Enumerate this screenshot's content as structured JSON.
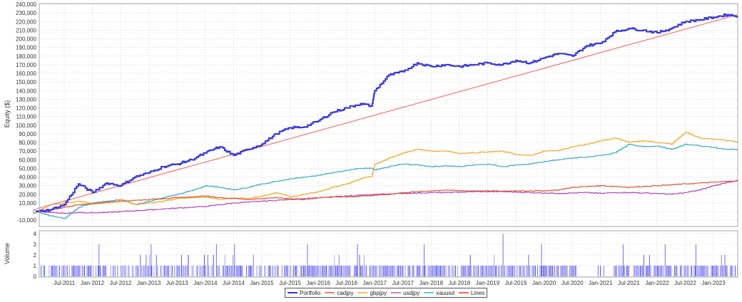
{
  "chart_data": [
    {
      "type": "line",
      "title": "",
      "xlabel": "",
      "ylabel": "Equity ($)",
      "ylim": [
        -15000,
        240000
      ],
      "y_ticks": [
        -10000,
        0,
        10000,
        20000,
        30000,
        40000,
        50000,
        60000,
        70000,
        80000,
        90000,
        100000,
        110000,
        120000,
        130000,
        140000,
        150000,
        160000,
        170000,
        180000,
        190000,
        200000,
        210000,
        220000,
        230000,
        240000
      ],
      "x_ticks": [
        "Jul-2011",
        "Jan-2012",
        "Jul-2012",
        "Jan-2013",
        "Jul-2013",
        "Jan-2014",
        "Jul-2014",
        "Jan-2015",
        "Jul-2015",
        "Jan-2016",
        "Jul-2016",
        "Jan-2017",
        "Jul-2017",
        "Jan-2018",
        "Jul-2018",
        "Jan-2019",
        "Jul-2019",
        "Jan-2020",
        "Jul-2020",
        "Jan-2021",
        "Jul-2021",
        "Jan-2022",
        "Jul-2022",
        "Jan-2023"
      ],
      "grid": true,
      "x": [
        2011.0,
        2011.25,
        2011.5,
        2011.75,
        2012.0,
        2012.25,
        2012.5,
        2012.75,
        2013.0,
        2013.25,
        2013.5,
        2013.75,
        2014.0,
        2014.25,
        2014.5,
        2014.75,
        2015.0,
        2015.25,
        2015.5,
        2015.75,
        2016.0,
        2016.25,
        2016.5,
        2016.75,
        2016.95,
        2017.0,
        2017.25,
        2017.5,
        2017.75,
        2018.0,
        2018.25,
        2018.5,
        2018.75,
        2019.0,
        2019.25,
        2019.5,
        2019.75,
        2020.0,
        2020.25,
        2020.5,
        2020.75,
        2021.0,
        2021.25,
        2021.5,
        2021.75,
        2022.0,
        2022.25,
        2022.5,
        2022.75,
        2023.0,
        2023.25,
        2023.5
      ],
      "series": [
        {
          "name": "Portfolio",
          "color": "#3333dd",
          "values": [
            0,
            2000,
            8000,
            32000,
            22000,
            33000,
            30000,
            40000,
            45000,
            52000,
            55000,
            60000,
            68000,
            75000,
            65000,
            72000,
            78000,
            90000,
            97000,
            98000,
            105000,
            115000,
            120000,
            125000,
            122000,
            140000,
            158000,
            162000,
            172000,
            168000,
            170000,
            168000,
            170000,
            172000,
            170000,
            175000,
            172000,
            178000,
            183000,
            180000,
            192000,
            195000,
            208000,
            212000,
            210000,
            207000,
            212000,
            220000,
            222000,
            225000,
            228000,
            225000
          ]
        },
        {
          "name": "cadjpy",
          "color": "#e05530",
          "values": [
            0,
            2000,
            5000,
            8000,
            9000,
            11000,
            12000,
            13000,
            14000,
            15000,
            16000,
            17000,
            18000,
            16000,
            15000,
            14000,
            15000,
            16000,
            15000,
            14000,
            16000,
            17000,
            17000,
            18000,
            18500,
            19000,
            20000,
            22000,
            23000,
            24000,
            25000,
            24000,
            24000,
            24000,
            23500,
            24000,
            24000,
            24000,
            25000,
            28000,
            29000,
            30000,
            29000,
            28000,
            29000,
            30000,
            31000,
            32000,
            33000,
            34000,
            35000,
            36000
          ]
        },
        {
          "name": "gbpjpy",
          "color": "#f5a623",
          "values": [
            0,
            8000,
            10000,
            12000,
            9000,
            10000,
            14000,
            8000,
            10000,
            12000,
            15000,
            16000,
            17000,
            14000,
            16000,
            15000,
            18000,
            22000,
            17000,
            20000,
            23000,
            28000,
            32000,
            38000,
            41000,
            55000,
            62000,
            68000,
            72000,
            70000,
            70000,
            67000,
            68000,
            69000,
            70000,
            66000,
            65000,
            70000,
            71000,
            75000,
            78000,
            82000,
            85000,
            80000,
            82000,
            80000,
            78000,
            92000,
            85000,
            84000,
            82000,
            80000
          ]
        },
        {
          "name": "usdjpy",
          "color": "#b040c0",
          "values": [
            0,
            -1000,
            -2000,
            -1000,
            -1500,
            -1000,
            0,
            1000,
            2000,
            3000,
            4000,
            5000,
            6000,
            8000,
            10000,
            11000,
            12000,
            13000,
            14000,
            15000,
            16000,
            17000,
            18000,
            19000,
            19000,
            20000,
            20500,
            21000,
            21500,
            22000,
            22000,
            22500,
            23000,
            23000,
            23000,
            22500,
            22000,
            21500,
            21000,
            21500,
            22000,
            21000,
            22000,
            22000,
            21500,
            21000,
            20000,
            22000,
            25000,
            30000,
            34000,
            37000
          ]
        },
        {
          "name": "xauusd",
          "color": "#33aacc",
          "values": [
            0,
            -5000,
            -8000,
            5000,
            10000,
            12000,
            14000,
            8000,
            12000,
            16000,
            20000,
            24000,
            30000,
            28000,
            25000,
            28000,
            32000,
            35000,
            38000,
            40000,
            42000,
            45000,
            48000,
            50000,
            50000,
            48000,
            52000,
            55000,
            54000,
            52000,
            53000,
            52000,
            54000,
            55000,
            52000,
            54000,
            55000,
            58000,
            60000,
            62000,
            63000,
            65000,
            68000,
            78000,
            75000,
            76000,
            72000,
            78000,
            76000,
            74000,
            72000,
            72000
          ]
        },
        {
          "name": "Lines",
          "color": "#ff6666",
          "values": [
            0,
            5000,
            10000,
            15000,
            20000,
            25000,
            30000,
            35000,
            40000,
            45000,
            50000,
            55000,
            60000,
            65000,
            70000,
            75000,
            80000,
            85000,
            90000,
            95000,
            100000,
            105000,
            110000,
            115000,
            119000,
            120000,
            125000,
            130000,
            135000,
            140000,
            145000,
            150000,
            155000,
            160000,
            165000,
            170000,
            175000,
            180000,
            185000,
            190000,
            195000,
            200000,
            205000,
            210000,
            215000,
            220000,
            222000,
            224000,
            225000,
            226000,
            227000,
            228000
          ]
        }
      ],
      "legend": [
        "Portfolio",
        "cadjpy",
        "gbpjpy",
        "usdjpy",
        "xauusd",
        "Lines"
      ],
      "legend_position": "bottom"
    },
    {
      "type": "bar",
      "title": "",
      "xlabel": "",
      "ylabel": "Volume",
      "ylim": [
        0,
        4
      ],
      "y_ticks": [
        0,
        1,
        2,
        3,
        4
      ],
      "grid": true,
      "color": "#3333ee",
      "description": "Daily trade volume bars, mostly 1, with occasional 2 and 3, and one 4 near Jul-2019",
      "peaks": [
        {
          "x": "Jan-2012",
          "value": 3
        },
        {
          "x": "Jan-2013",
          "value": 3
        },
        {
          "x": "Jan-2014",
          "value": 3
        },
        {
          "x": "Jul-2014",
          "value": 3
        },
        {
          "x": "Jan-2016",
          "value": 3
        },
        {
          "x": "Jul-2016",
          "value": 3
        },
        {
          "x": "Jan-2018",
          "value": 3
        },
        {
          "x": "Jul-2019",
          "value": 4
        },
        {
          "x": "Jan-2020",
          "value": 3
        },
        {
          "x": "Jul-2021",
          "value": 3
        },
        {
          "x": "Jan-2022",
          "value": 3
        },
        {
          "x": "Jul-2022",
          "value": 3
        }
      ]
    }
  ],
  "axes": {
    "main": {
      "ylabel": "Equity ($)",
      "y_tick_labels": [
        "240,000",
        "230,000",
        "220,000",
        "210,000",
        "200,000",
        "190,000",
        "180,000",
        "170,000",
        "160,000",
        "150,000",
        "140,000",
        "130,000",
        "120,000",
        "110,000",
        "100,000",
        "90,000",
        "80,000",
        "70,000",
        "60,000",
        "50,000",
        "40,000",
        "30,000",
        "20,000",
        "10,000",
        "0",
        "-10,000"
      ]
    },
    "volume": {
      "ylabel": "Volume",
      "y_tick_labels": [
        "4",
        "3",
        "2",
        "1",
        "0"
      ]
    },
    "x_tick_labels": [
      "Jul-2011",
      "Jan-2012",
      "Jul-2012",
      "Jan-2013",
      "Jul-2013",
      "Jan-2014",
      "Jul-2014",
      "Jan-2015",
      "Jul-2015",
      "Jan-2016",
      "Jul-2016",
      "Jan-2017",
      "Jul-2017",
      "Jan-2018",
      "Jul-2018",
      "Jan-2019",
      "Jul-2019",
      "Jan-2020",
      "Jul-2020",
      "Jan-2021",
      "Jul-2021",
      "Jan-2022",
      "Jul-2022",
      "Jan-2023"
    ]
  },
  "legend": {
    "items": [
      {
        "label": "Portfolio",
        "color": "#3333dd"
      },
      {
        "label": "cadjpy",
        "color": "#f08070"
      },
      {
        "label": "gbpjpy",
        "color": "#f5c060"
      },
      {
        "label": "usdjpy",
        "color": "#d080d0"
      },
      {
        "label": "xauusd",
        "color": "#60c8e0"
      },
      {
        "label": "Lines",
        "color": "#ff6666"
      }
    ]
  }
}
